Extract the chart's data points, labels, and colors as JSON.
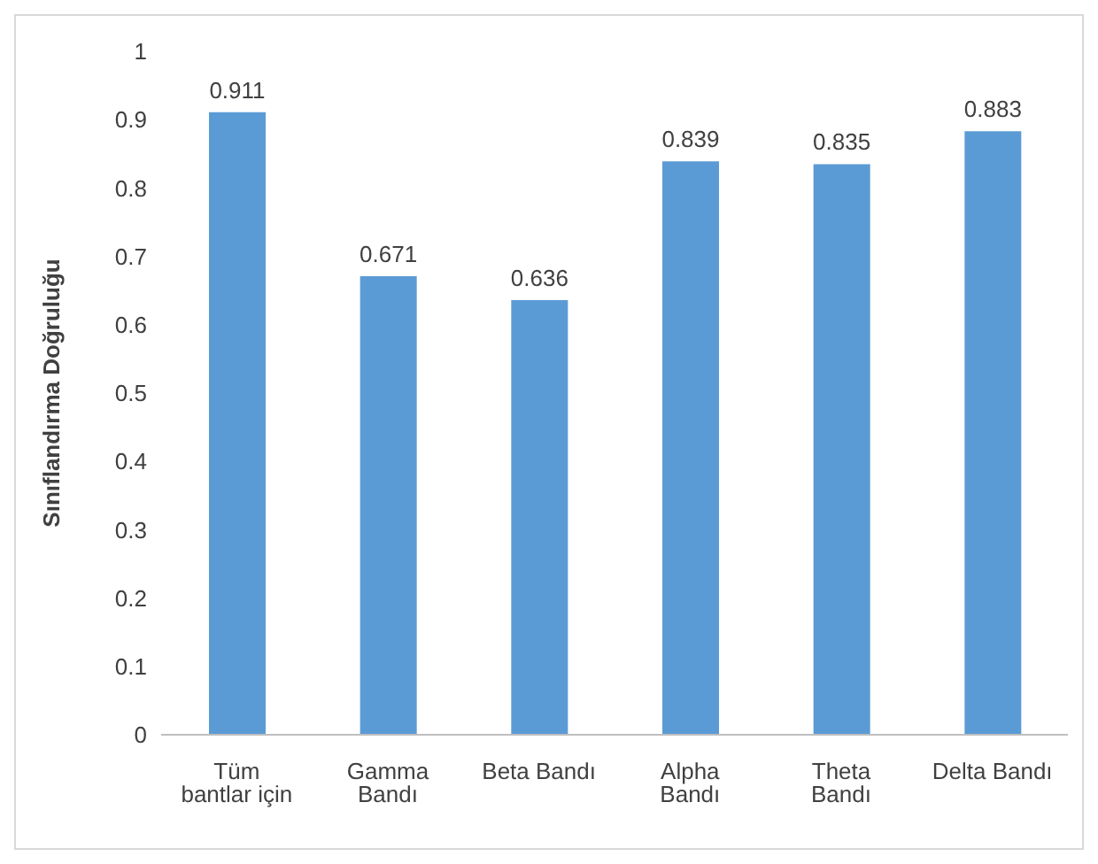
{
  "chart_data": {
    "type": "bar",
    "ylabel": "Sınıflandırma Doğruluğu",
    "categories": [
      "Tüm bantlar için",
      "Gamma Bandı",
      "Beta Bandı",
      "Alpha Bandı",
      "Theta Bandı",
      "Delta Bandı"
    ],
    "values": [
      0.911,
      0.671,
      0.636,
      0.839,
      0.835,
      0.883
    ],
    "color": "#5b9bd5",
    "ylim": [
      0,
      1
    ],
    "yticks": [
      0,
      0.1,
      0.2,
      0.3,
      0.4,
      0.5,
      0.6,
      0.7,
      0.8,
      0.9,
      1
    ],
    "grid": false,
    "data_labels": true
  }
}
